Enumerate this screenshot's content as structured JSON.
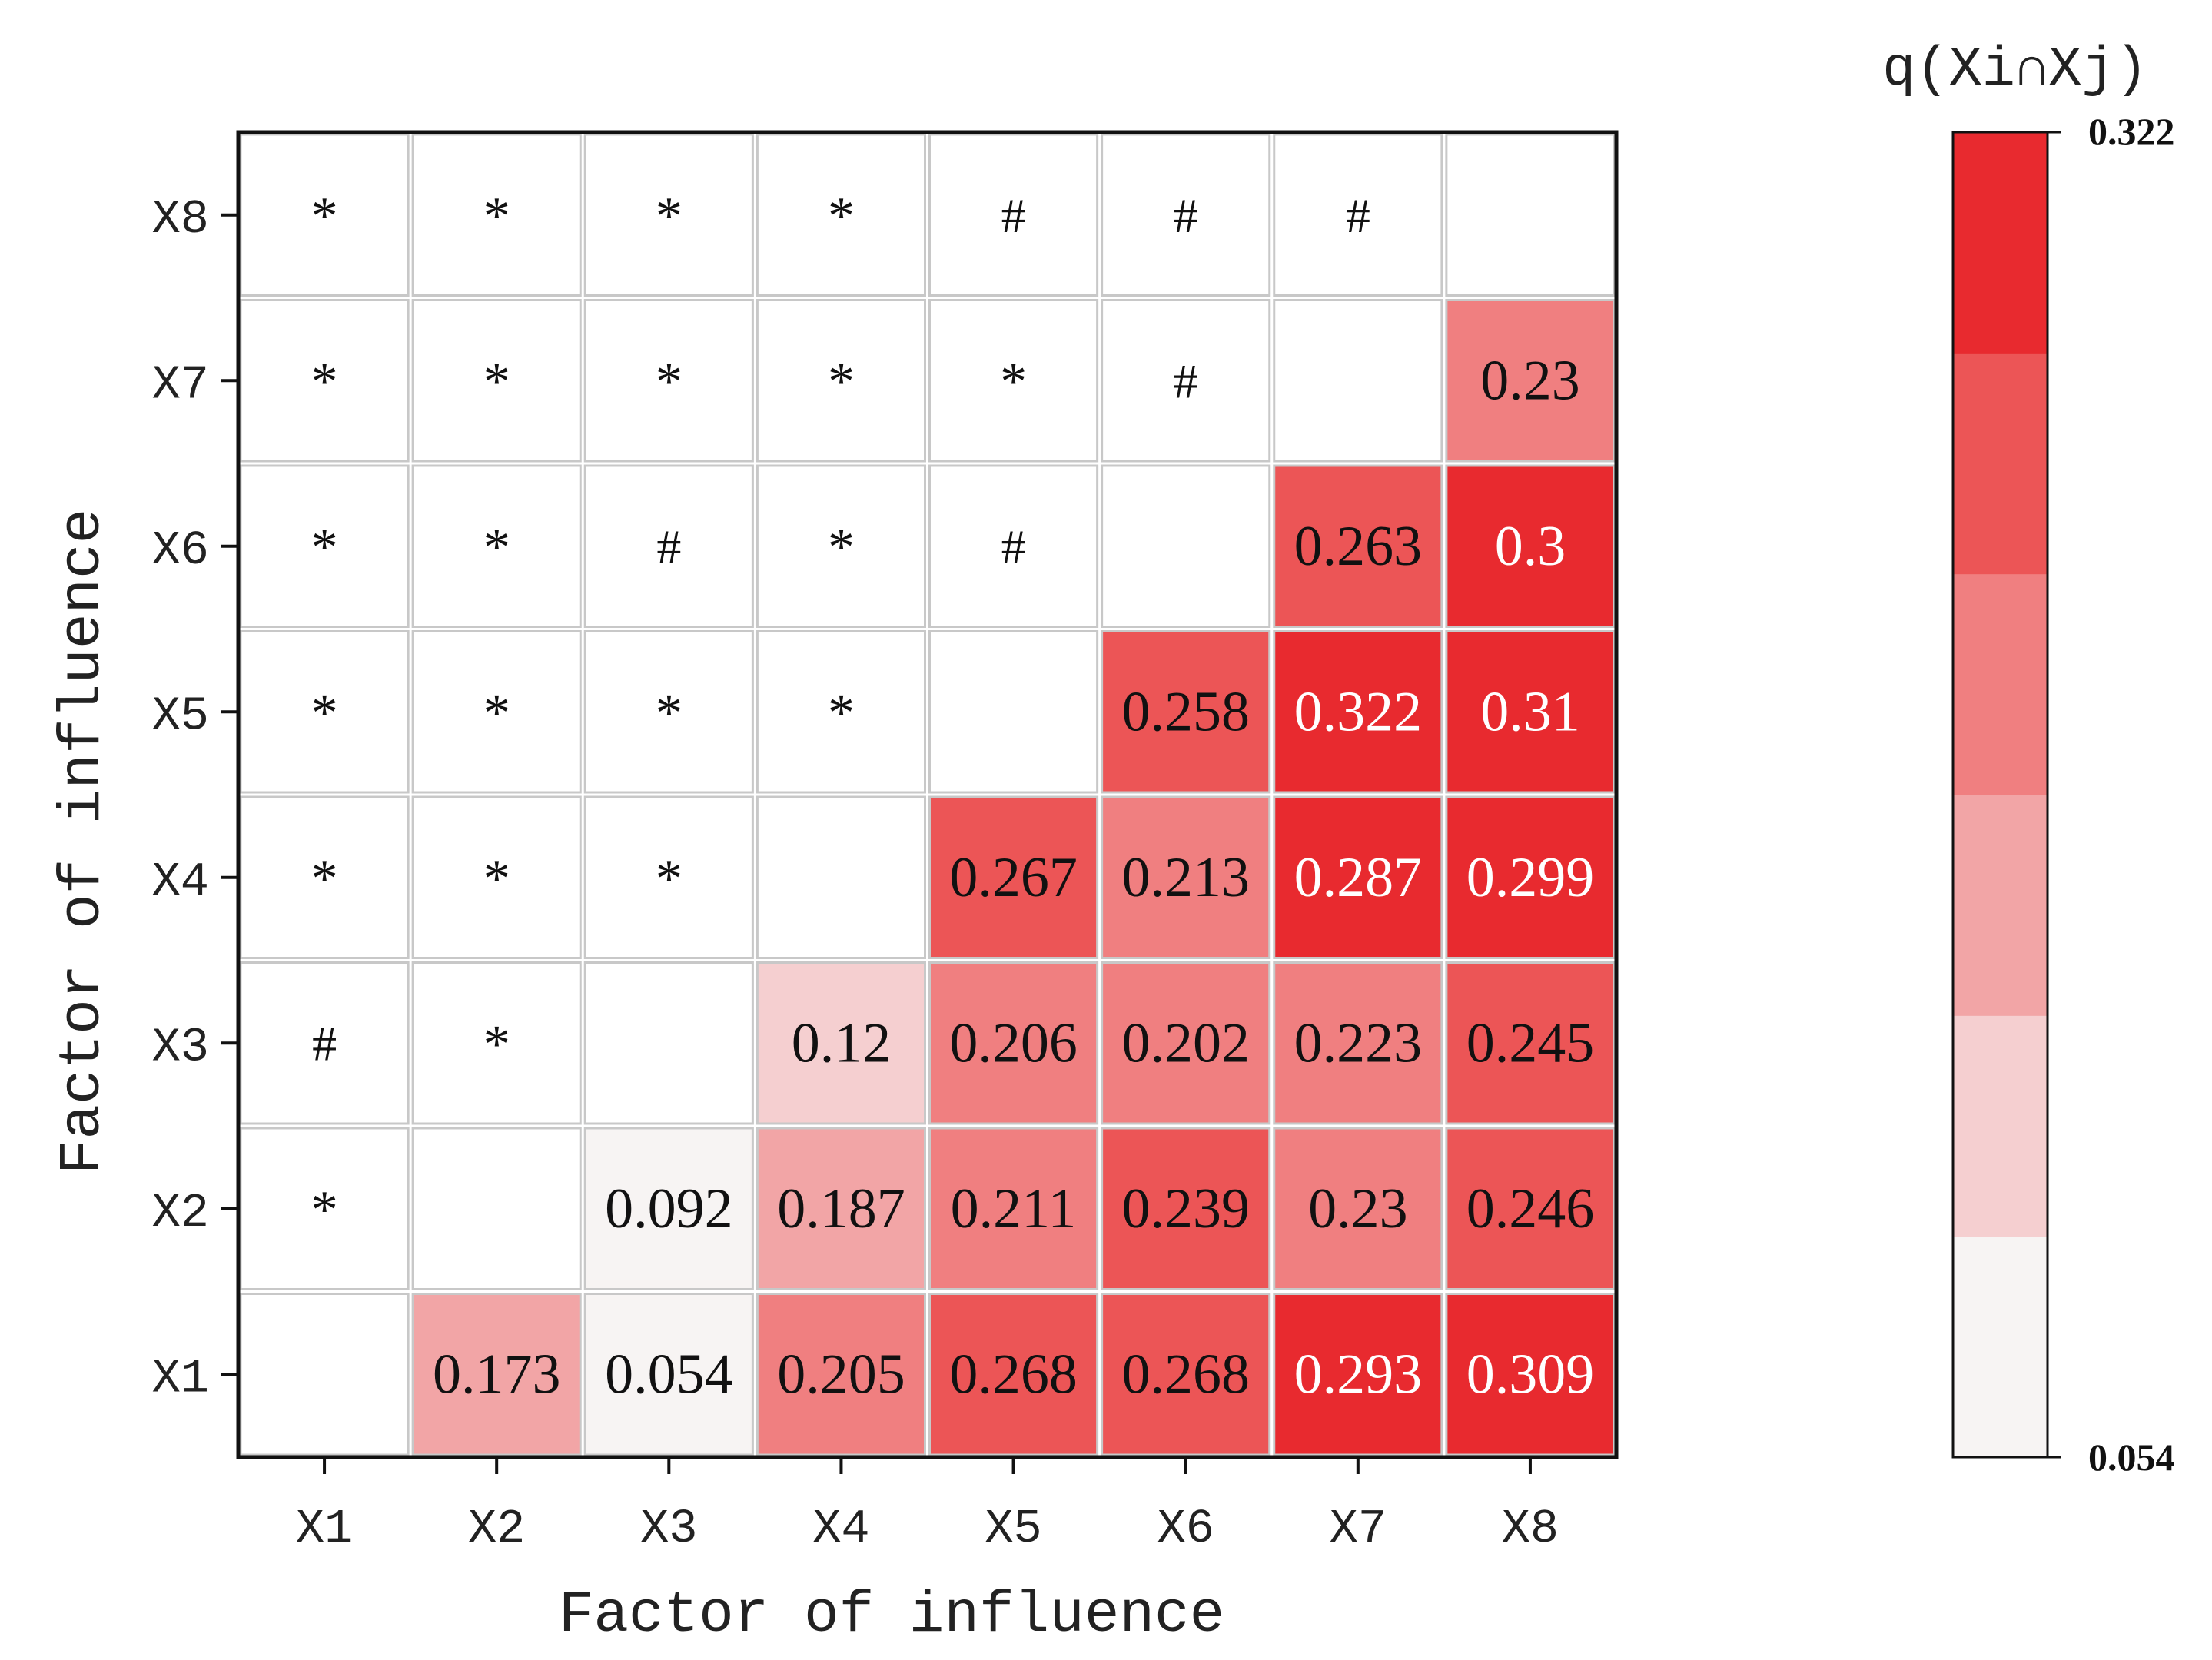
{
  "chart_data": {
    "type": "heatmap",
    "xlabel": "Factor of influence",
    "ylabel": "Factor of influence",
    "x_categories": [
      "X1",
      "X2",
      "X3",
      "X4",
      "X5",
      "X6",
      "X7",
      "X8"
    ],
    "y_categories": [
      "X1",
      "X2",
      "X3",
      "X4",
      "X5",
      "X6",
      "X7",
      "X8"
    ],
    "colorbar": {
      "title": "q(Xi∩Xj)",
      "min": 0.054,
      "max": 0.322,
      "min_label": "0.054",
      "max_label": "0.322",
      "steps": 6,
      "colors": [
        "#f7f4f3",
        "#f5cfd0",
        "#f2a5a6",
        "#f07f80",
        "#ec5556",
        "#e82a2f"
      ]
    },
    "values": [
      [
        null,
        0.173,
        0.054,
        0.205,
        0.268,
        0.268,
        0.293,
        0.309
      ],
      [
        null,
        null,
        0.092,
        0.187,
        0.211,
        0.239,
        0.23,
        0.246
      ],
      [
        null,
        null,
        null,
        0.12,
        0.206,
        0.202,
        0.223,
        0.245
      ],
      [
        null,
        null,
        null,
        null,
        0.267,
        0.213,
        0.287,
        0.299
      ],
      [
        null,
        null,
        null,
        null,
        null,
        0.258,
        0.322,
        0.31
      ],
      [
        null,
        null,
        null,
        null,
        null,
        null,
        0.263,
        0.3
      ],
      [
        null,
        null,
        null,
        null,
        null,
        null,
        null,
        0.23
      ],
      [
        null,
        null,
        null,
        null,
        null,
        null,
        null,
        null
      ]
    ],
    "value_labels": [
      [
        "",
        "0.173",
        "0.054",
        "0.205",
        "0.268",
        "0.268",
        "0.293",
        "0.309"
      ],
      [
        "",
        "",
        "0.092",
        "0.187",
        "0.211",
        "0.239",
        "0.23",
        "0.246"
      ],
      [
        "",
        "",
        "",
        "0.12",
        "0.206",
        "0.202",
        "0.223",
        "0.245"
      ],
      [
        "",
        "",
        "",
        "",
        "0.267",
        "0.213",
        "0.287",
        "0.299"
      ],
      [
        "",
        "",
        "",
        "",
        "",
        "0.258",
        "0.322",
        "0.31"
      ],
      [
        "",
        "",
        "",
        "",
        "",
        "",
        "0.263",
        "0.3"
      ],
      [
        "",
        "",
        "",
        "",
        "",
        "",
        "",
        "0.23"
      ],
      [
        "",
        "",
        "",
        "",
        "",
        "",
        "",
        ""
      ]
    ],
    "symbols": [
      [
        "",
        "",
        "",
        "",
        "",
        "",
        "",
        ""
      ],
      [
        "*",
        "",
        "",
        "",
        "",
        "",
        "",
        ""
      ],
      [
        "#",
        "*",
        "",
        "",
        "",
        "",
        "",
        ""
      ],
      [
        "*",
        "*",
        "*",
        "",
        "",
        "",
        "",
        ""
      ],
      [
        "*",
        "*",
        "*",
        "*",
        "",
        "",
        "",
        ""
      ],
      [
        "*",
        "*",
        "#",
        "*",
        "#",
        "",
        "",
        ""
      ],
      [
        "*",
        "*",
        "*",
        "*",
        "*",
        "#",
        "",
        ""
      ],
      [
        "*",
        "*",
        "*",
        "*",
        "#",
        "#",
        "#",
        ""
      ]
    ]
  }
}
